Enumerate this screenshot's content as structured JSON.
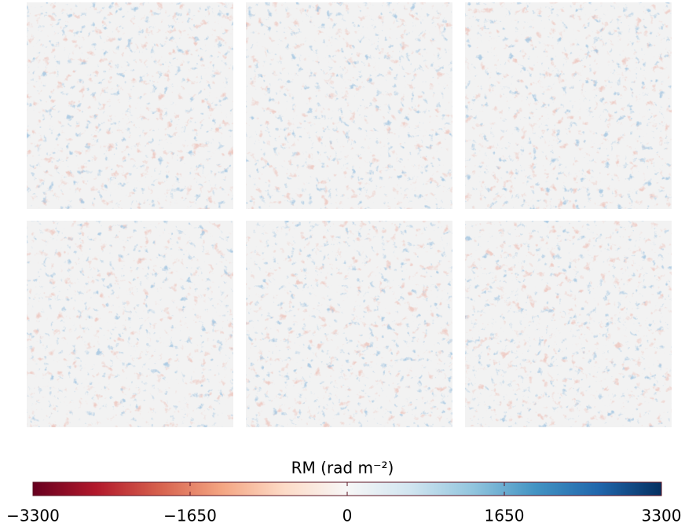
{
  "chart_data": {
    "type": "heatmap",
    "colorbar_label": "RM (rad m⁻²)",
    "colormap": [
      "#67001f",
      "#b2182b",
      "#d6604d",
      "#f4a582",
      "#fddbc7",
      "#f7f7f7",
      "#d1e5f0",
      "#92c5de",
      "#4393c3",
      "#2166ac",
      "#053061"
    ],
    "clim": [
      -3300,
      3300
    ],
    "cticks": [
      {
        "value": -3300,
        "label": "−3300"
      },
      {
        "value": -1650,
        "label": "−1650"
      },
      0,
      1650,
      3300
    ]
  }
}
